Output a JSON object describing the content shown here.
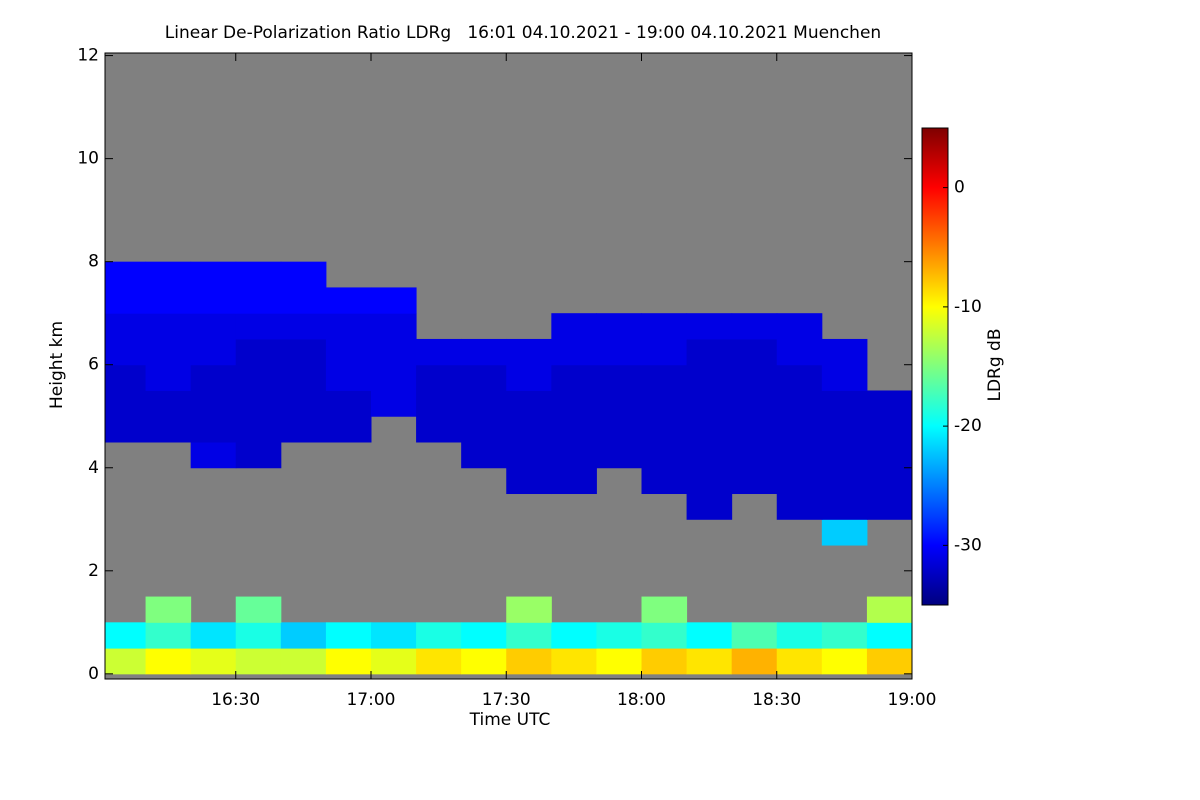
{
  "chart_data": {
    "type": "heatmap",
    "title": "Linear De-Polarization Ratio LDRg   16:01 04.10.2021 - 19:00 04.10.2021 Muenchen",
    "x_label": "Time UTC",
    "y_label": "Height km",
    "colorbar_label": "LDRg dB",
    "x_edges": [
      960,
      970,
      980,
      990,
      1000,
      1010,
      1020,
      1030,
      1040,
      1050,
      1060,
      1070,
      1080,
      1090,
      1100,
      1110,
      1120,
      1130,
      1140
    ],
    "y_edges": [
      0,
      0.5,
      1,
      1.5,
      2,
      2.5,
      3,
      3.5,
      4,
      4.5,
      5,
      5.5,
      6,
      6.5,
      7,
      7.5,
      8,
      8.5,
      9,
      9.5,
      10,
      10.5,
      11,
      11.5,
      12
    ],
    "z": [
      [
        -12,
        -10,
        -11,
        -12,
        -12,
        -10,
        -11,
        -9,
        -10,
        -8,
        -9,
        -10,
        -8,
        -9,
        -7,
        -9,
        -10,
        -8
      ],
      [
        -20,
        -18,
        -21,
        -19,
        -22,
        -20,
        -21,
        -19,
        -20,
        -18,
        -20,
        -19,
        -18,
        -20,
        -17,
        -19,
        -18,
        -20
      ],
      [
        null,
        -15,
        null,
        -16,
        null,
        null,
        null,
        null,
        null,
        -14,
        null,
        null,
        -15,
        null,
        null,
        null,
        null,
        -13
      ],
      [
        null,
        null,
        null,
        null,
        null,
        null,
        null,
        null,
        null,
        null,
        null,
        null,
        null,
        null,
        null,
        null,
        null,
        null
      ],
      [
        null,
        null,
        null,
        null,
        null,
        null,
        null,
        null,
        null,
        null,
        null,
        null,
        null,
        null,
        null,
        null,
        null,
        null
      ],
      [
        null,
        null,
        null,
        null,
        null,
        null,
        null,
        null,
        null,
        null,
        null,
        null,
        null,
        null,
        null,
        null,
        -22,
        null
      ],
      [
        null,
        null,
        null,
        null,
        null,
        null,
        null,
        null,
        null,
        null,
        null,
        null,
        null,
        -32,
        null,
        -32,
        -32,
        -32
      ],
      [
        null,
        null,
        null,
        null,
        null,
        null,
        null,
        null,
        null,
        -32,
        -32,
        null,
        -32,
        -32,
        -32,
        -32,
        -32,
        -32
      ],
      [
        null,
        null,
        -31,
        -32,
        null,
        null,
        null,
        null,
        -32,
        -32,
        -32,
        -32,
        -32,
        -32,
        -32,
        -32,
        -32,
        -32
      ],
      [
        -32,
        -32,
        -32,
        -32,
        -32,
        -32,
        null,
        -32,
        -32,
        -32,
        -32,
        -32,
        -32,
        -32,
        -32,
        -32,
        -32,
        -32
      ],
      [
        -32,
        -32,
        -32,
        -32,
        -32,
        -32,
        -31,
        -32,
        -32,
        -32,
        -32,
        -32,
        -32,
        -32,
        -32,
        -32,
        -32,
        -32
      ],
      [
        -32,
        -31,
        -32,
        -32,
        -32,
        -31,
        -31,
        -32,
        -32,
        -31,
        -32,
        -32,
        -32,
        -32,
        -32,
        -32,
        -31,
        null
      ],
      [
        -31,
        -31,
        -31,
        -32,
        -32,
        -31,
        -31,
        -31,
        -31,
        -31,
        -31,
        -31,
        -31,
        -32,
        -32,
        -31,
        -31,
        null
      ],
      [
        -31,
        -31,
        -31,
        -31,
        -31,
        -31,
        -31,
        null,
        null,
        null,
        -31,
        -31,
        -31,
        -31,
        -31,
        -31,
        null,
        null
      ],
      [
        -30,
        -30,
        -30,
        -30,
        -30,
        -30,
        -30,
        null,
        null,
        null,
        null,
        null,
        null,
        null,
        null,
        null,
        null,
        null
      ],
      [
        -30,
        -30,
        -30,
        -30,
        -30,
        null,
        null,
        null,
        null,
        null,
        null,
        null,
        null,
        null,
        null,
        null,
        null,
        null
      ],
      [
        null,
        null,
        null,
        null,
        null,
        null,
        null,
        null,
        null,
        null,
        null,
        null,
        null,
        null,
        null,
        null,
        null,
        null
      ],
      [
        null,
        null,
        null,
        null,
        null,
        null,
        null,
        null,
        null,
        null,
        null,
        null,
        null,
        null,
        null,
        null,
        null,
        null
      ],
      [
        null,
        null,
        null,
        null,
        null,
        null,
        null,
        null,
        null,
        null,
        null,
        null,
        null,
        null,
        null,
        null,
        null,
        null
      ],
      [
        null,
        null,
        null,
        null,
        null,
        null,
        null,
        null,
        null,
        null,
        null,
        null,
        null,
        null,
        null,
        null,
        null,
        null
      ],
      [
        null,
        null,
        null,
        null,
        null,
        null,
        null,
        null,
        null,
        null,
        null,
        null,
        null,
        null,
        null,
        null,
        null,
        null
      ],
      [
        null,
        null,
        null,
        null,
        null,
        null,
        null,
        null,
        null,
        null,
        null,
        null,
        null,
        null,
        null,
        null,
        null,
        null
      ],
      [
        null,
        null,
        null,
        null,
        null,
        null,
        null,
        null,
        null,
        null,
        null,
        null,
        null,
        null,
        null,
        null,
        null,
        null
      ],
      [
        null,
        null,
        null,
        null,
        null,
        null,
        null,
        null,
        null,
        null,
        null,
        null,
        null,
        null,
        null,
        null,
        null,
        null
      ]
    ],
    "xlim": [
      961,
      1140
    ],
    "xticks": [
      {
        "value": 990,
        "label": "16:30"
      },
      {
        "value": 1020,
        "label": "17:00"
      },
      {
        "value": 1050,
        "label": "17:30"
      },
      {
        "value": 1080,
        "label": "18:00"
      },
      {
        "value": 1110,
        "label": "18:30"
      },
      {
        "value": 1140,
        "label": "19:00"
      }
    ],
    "ylim": [
      -0.1,
      12.05
    ],
    "yticks": [
      0,
      2,
      4,
      6,
      8,
      10,
      12
    ],
    "clim": [
      -35,
      5
    ],
    "cticks": [
      -30,
      -20,
      -10,
      0
    ],
    "colormap": [
      "#00007f",
      "#0000ff",
      "#007fff",
      "#00ffff",
      "#7fff7f",
      "#ffff00",
      "#ff7f00",
      "#ff0000",
      "#7f0000"
    ],
    "missing_color": "#808080"
  }
}
